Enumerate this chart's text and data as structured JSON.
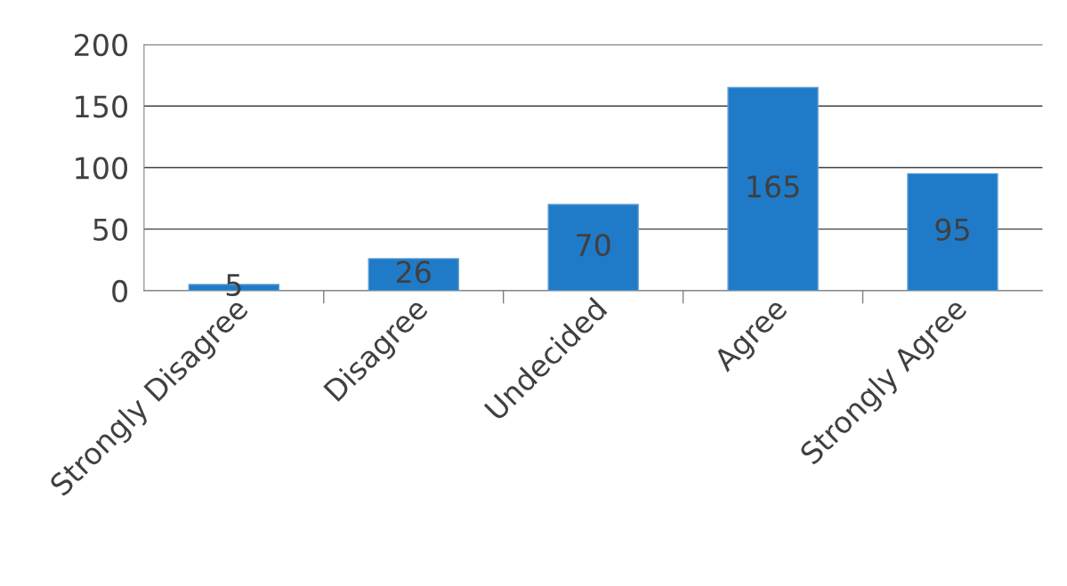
{
  "chart_data": {
    "type": "bar",
    "categories": [
      "Strongly Disagree",
      "Disagree",
      "Undecided",
      "Agree",
      "Strongly Agree"
    ],
    "values": [
      5,
      26,
      70,
      165,
      95
    ],
    "color": "#1f7bc8",
    "ylim": [
      0,
      200
    ],
    "yticks": [
      0,
      50,
      100,
      150,
      200
    ],
    "grid": "y",
    "data_labels": true,
    "legend": false
  }
}
